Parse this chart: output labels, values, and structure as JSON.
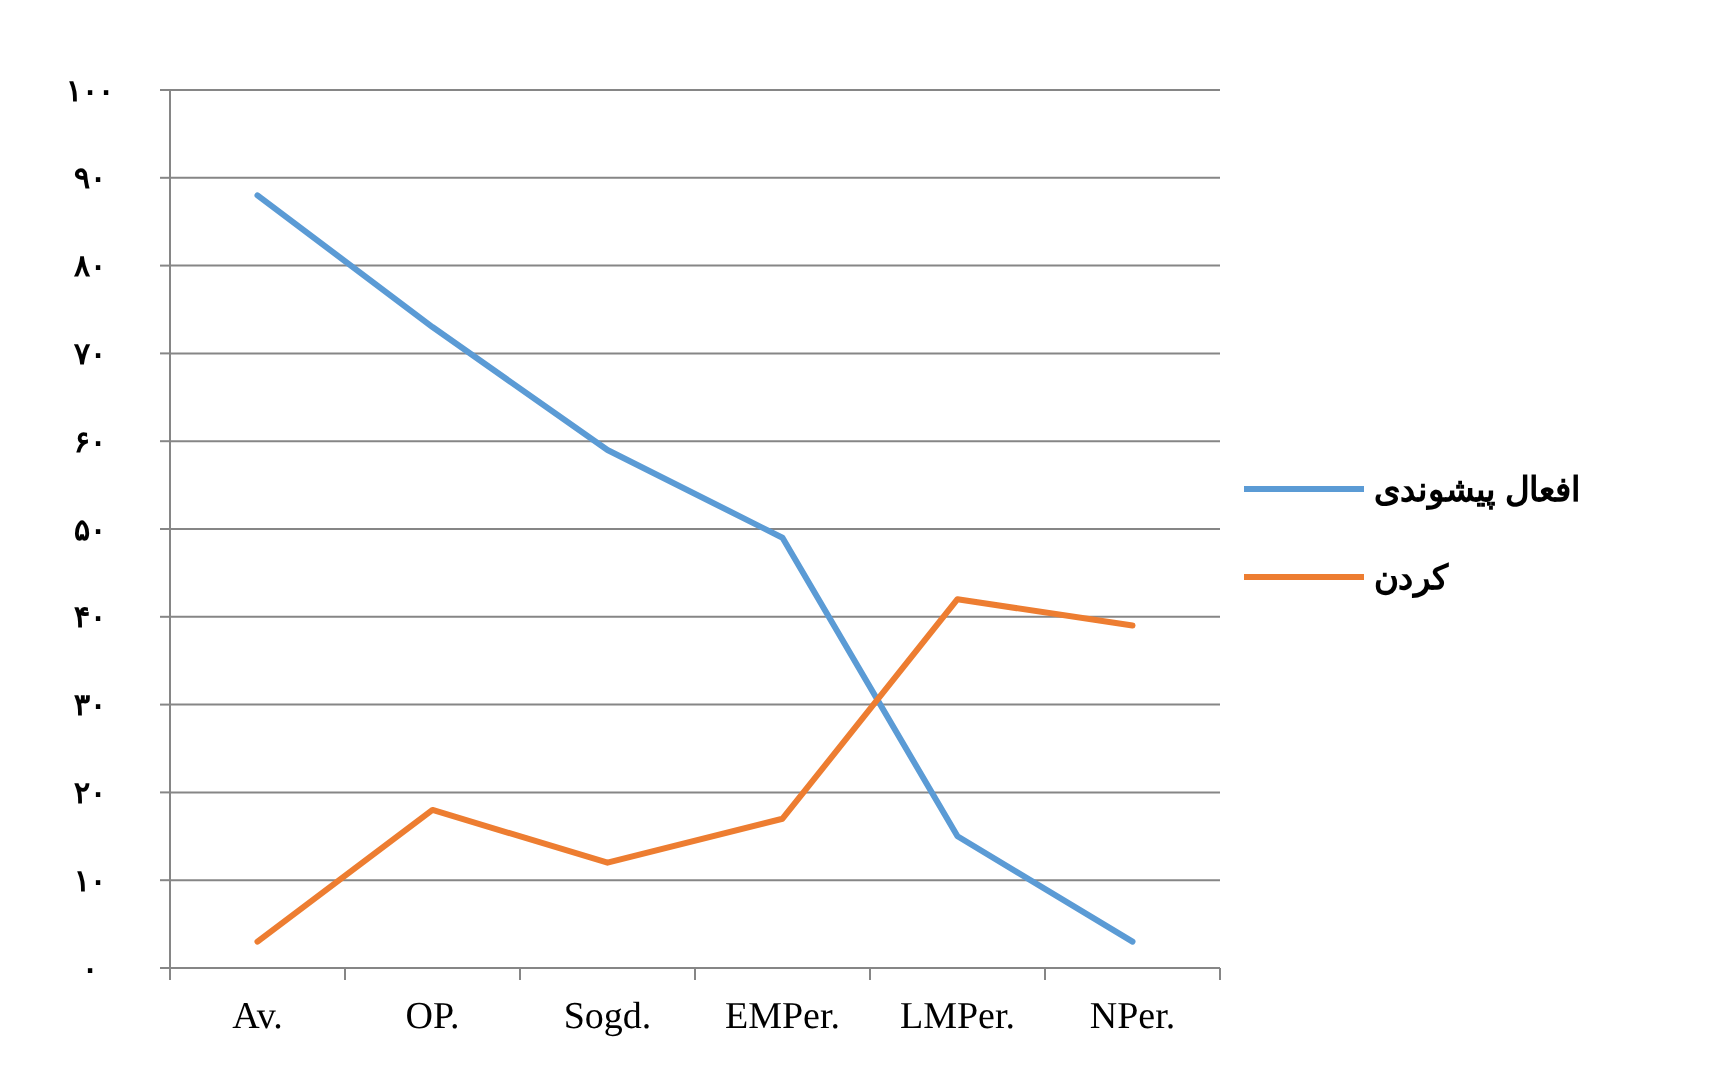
{
  "chart_data": {
    "type": "line",
    "categories": [
      "Av.",
      "OP.",
      "Sogd.",
      "EMPer.",
      "LMPer.",
      "NPer."
    ],
    "series": [
      {
        "name": "افعال پیشوندی",
        "color": "#5b9bd5",
        "values": [
          88,
          73,
          59,
          49,
          15,
          3
        ]
      },
      {
        "name": "کردن",
        "color": "#ed7d31",
        "values": [
          3,
          18,
          12,
          17,
          42,
          39
        ]
      }
    ],
    "ylim": [
      0,
      100
    ],
    "yticks": [
      {
        "value": 0,
        "label": "۰"
      },
      {
        "value": 10,
        "label": "۱۰"
      },
      {
        "value": 20,
        "label": "۲۰"
      },
      {
        "value": 30,
        "label": "۳۰"
      },
      {
        "value": 40,
        "label": "۴۰"
      },
      {
        "value": 50,
        "label": "۵۰"
      },
      {
        "value": 60,
        "label": "۶۰"
      },
      {
        "value": 70,
        "label": "۷۰"
      },
      {
        "value": 80,
        "label": "۸۰"
      },
      {
        "value": 90,
        "label": "۹۰"
      },
      {
        "value": 100,
        "label": "۱۰۰"
      }
    ],
    "grid": "y",
    "legend": "right",
    "marker": "none"
  }
}
